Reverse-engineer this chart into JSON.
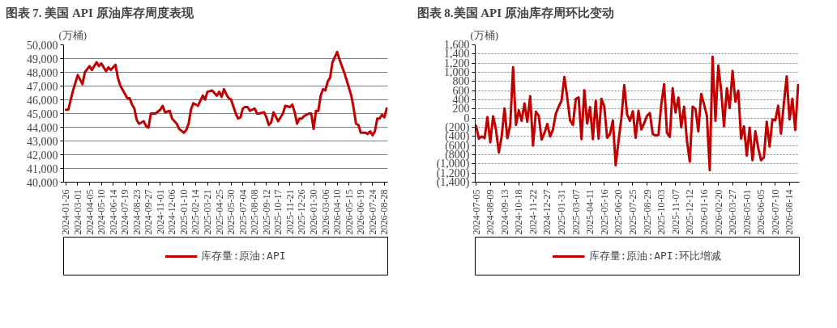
{
  "chart_data": [
    {
      "type": "line",
      "title": "图表 7. 美国 API 原油库存周度表现",
      "ylabel": "(万桶)",
      "legend": "bottom",
      "grid": "y",
      "marker": "none",
      "line_style": "solid",
      "x": [
        "2024-01-26",
        "2024-02-02",
        "2024-02-16",
        "2024-03-01",
        "2024-03-15",
        "2024-03-22",
        "2024-04-05",
        "2024-04-12",
        "2024-04-26",
        "2024-05-03",
        "2024-05-10",
        "2024-05-24",
        "2024-05-31",
        "2024-06-07",
        "2024-06-21",
        "2024-06-28",
        "2024-07-05",
        "2024-07-26",
        "2024-08-02",
        "2024-08-09",
        "2024-08-16",
        "2024-08-23",
        "2024-08-30",
        "2024-09-13",
        "2024-09-20",
        "2024-09-27",
        "2024-10-04",
        "2024-10-18",
        "2024-11-01",
        "2024-11-08",
        "2024-11-15",
        "2024-11-29",
        "2024-12-06",
        "2024-12-20",
        "2024-12-27",
        "2025-01-10",
        "2025-01-17",
        "2025-01-24",
        "2025-01-31",
        "2025-02-07",
        "2025-02-21",
        "2025-03-07",
        "2025-03-14",
        "2025-03-21",
        "2025-04-04",
        "2025-04-18",
        "2025-04-25",
        "2025-05-02",
        "2025-05-09",
        "2025-05-16",
        "2025-05-23",
        "2025-05-30",
        "2025-06-13",
        "2025-06-20",
        "2025-06-27",
        "2025-07-04",
        "2025-07-11",
        "2025-07-18",
        "2025-07-25",
        "2025-08-08",
        "2025-08-15",
        "2025-08-22",
        "2025-09-05",
        "2025-09-12",
        "2025-09-19",
        "2025-09-26",
        "2025-10-03",
        "2025-10-17",
        "2025-10-31",
        "2025-11-07",
        "2025-11-21",
        "2025-11-28",
        "2025-12-05",
        "2025-12-12",
        "2025-12-19",
        "2025-12-26",
        "2026-01-02",
        "2026-01-16",
        "2026-01-23",
        "2026-01-30",
        "2026-02-06",
        "2026-02-13",
        "2026-02-20",
        "2026-02-27",
        "2026-03-06",
        "2026-03-13",
        "2026-03-20",
        "2026-03-27",
        "2026-04-10",
        "2026-04-17",
        "2026-04-24",
        "2026-05-01",
        "2026-05-15",
        "2026-05-22",
        "2026-05-29",
        "2026-06-05",
        "2026-06-12",
        "2026-06-19",
        "2026-07-03",
        "2026-07-10",
        "2026-07-17",
        "2026-07-24",
        "2026-07-31",
        "2026-08-07",
        "2026-08-14",
        "2026-08-21",
        "2026-08-28",
        "2026-09-04"
      ],
      "series": [
        {
          "name": "库存量:原油:API",
          "color": "#c00000",
          "values": [
            45280,
            45280,
            46680,
            47800,
            47140,
            48000,
            48450,
            48170,
            48730,
            48450,
            48640,
            48080,
            48360,
            48170,
            48550,
            47610,
            47050,
            46120,
            46120,
            45650,
            45370,
            44530,
            44250,
            44440,
            44070,
            43980,
            45000,
            45000,
            45280,
            45560,
            45090,
            45190,
            44630,
            44250,
            43880,
            43600,
            43790,
            44250,
            45280,
            45750,
            45560,
            46300,
            46020,
            46580,
            46680,
            46300,
            46580,
            46210,
            46770,
            46400,
            46120,
            46020,
            45000,
            44630,
            44720,
            45370,
            45470,
            45470,
            45190,
            45370,
            45000,
            45000,
            45090,
            44720,
            44160,
            44350,
            45090,
            44440,
            45000,
            45560,
            45470,
            45650,
            45090,
            44250,
            44630,
            44630,
            44820,
            45000,
            45000,
            43880,
            45190,
            45190,
            46300,
            46770,
            46680,
            47330,
            47610,
            48730,
            49480,
            48920,
            48450,
            47990,
            46870,
            46300,
            45370,
            44250,
            44160,
            43600,
            43600,
            43510,
            43700,
            43410,
            43700,
            44630,
            44630,
            44910,
            44720,
            45370
          ]
        }
      ],
      "xlim": [
        "2024-01-19",
        "2026-09-07"
      ],
      "xticks": [
        "2024-01-26",
        "2024-03-01",
        "2024-04-05",
        "2024-05-10",
        "2024-06-14",
        "2024-07-19",
        "2024-08-23",
        "2024-09-27",
        "2024-11-01",
        "2024-12-06",
        "2025-01-10",
        "2025-02-14",
        "2025-03-21",
        "2025-04-25",
        "2025-05-30",
        "2025-07-04",
        "2025-08-08",
        "2025-09-12",
        "2025-10-17",
        "2025-11-21",
        "2025-12-26",
        "2026-01-30",
        "2026-03-06",
        "2026-04-10",
        "2026-05-15",
        "2026-06-19",
        "2026-07-24",
        "2026-08-28"
      ],
      "ylim": [
        40000,
        50000
      ],
      "yticks": [
        {
          "value": 40000,
          "label": "40,000"
        },
        {
          "value": 41000,
          "label": "41,000"
        },
        {
          "value": 42000,
          "label": "42,000"
        },
        {
          "value": 43000,
          "label": "43,000"
        },
        {
          "value": 44000,
          "label": "44,000"
        },
        {
          "value": 45000,
          "label": "45,000"
        },
        {
          "value": 46000,
          "label": "46,000"
        },
        {
          "value": 47000,
          "label": "47,000"
        },
        {
          "value": 48000,
          "label": "48,000"
        },
        {
          "value": 49000,
          "label": "49,000"
        },
        {
          "value": 50000,
          "label": "50,000"
        }
      ]
    },
    {
      "type": "line",
      "title": "图表 8.美国 API 原油库存周环比变动",
      "ylabel": "(万桶)",
      "legend": "bottom",
      "grid": "y",
      "marker": "none",
      "line_style": "solid",
      "x": [
        "2024-07-05",
        "2024-07-12",
        "2024-07-19",
        "2024-07-26",
        "2024-08-02",
        "2024-08-09",
        "2024-08-16",
        "2024-08-23",
        "2024-08-30",
        "2024-09-06",
        "2024-09-13",
        "2024-09-20",
        "2024-09-27",
        "2024-10-04",
        "2024-10-11",
        "2024-10-18",
        "2024-10-25",
        "2024-11-01",
        "2024-11-08",
        "2024-11-15",
        "2024-11-22",
        "2024-11-29",
        "2024-12-06",
        "2024-12-13",
        "2024-12-20",
        "2024-12-27",
        "2025-01-03",
        "2025-01-10",
        "2025-01-17",
        "2025-01-24",
        "2025-01-31",
        "2025-02-07",
        "2025-02-14",
        "2025-02-21",
        "2025-02-28",
        "2025-03-07",
        "2025-03-14",
        "2025-03-21",
        "2025-03-28",
        "2025-04-04",
        "2025-04-11",
        "2025-04-18",
        "2025-04-25",
        "2025-05-02",
        "2025-05-09",
        "2025-05-16",
        "2025-05-23",
        "2025-05-30",
        "2025-06-06",
        "2025-06-13",
        "2025-06-20",
        "2025-06-27",
        "2025-07-04",
        "2025-07-11",
        "2025-07-18",
        "2025-07-25",
        "2025-08-01",
        "2025-08-08",
        "2025-08-15",
        "2025-08-22",
        "2025-08-29",
        "2025-09-05",
        "2025-09-12",
        "2025-09-19",
        "2025-09-26",
        "2025-10-03",
        "2025-10-10",
        "2025-10-17",
        "2025-10-24",
        "2025-10-31",
        "2025-11-07",
        "2025-11-14",
        "2025-11-21",
        "2025-11-28",
        "2025-12-05",
        "2025-12-12",
        "2025-12-19",
        "2025-12-26",
        "2026-01-02",
        "2026-01-09",
        "2026-01-16",
        "2026-01-23",
        "2026-01-30",
        "2026-02-06",
        "2026-02-13",
        "2026-02-20",
        "2026-02-27",
        "2026-03-06",
        "2026-03-13",
        "2026-03-20",
        "2026-03-27",
        "2026-04-03",
        "2026-04-10",
        "2026-04-17",
        "2026-04-24",
        "2026-05-01",
        "2026-05-08",
        "2026-05-15",
        "2026-05-22",
        "2026-05-29",
        "2026-06-05",
        "2026-06-12",
        "2026-06-19",
        "2026-06-26",
        "2026-07-03",
        "2026-07-10",
        "2026-07-17",
        "2026-07-24",
        "2026-07-31",
        "2026-08-07",
        "2026-08-14",
        "2026-08-21",
        "2026-08-28",
        "2026-09-04"
      ],
      "series": [
        {
          "name": "库存量:原油:API:环比增减",
          "color": "#c00000",
          "values": [
            -170,
            -450,
            -400,
            -440,
            20,
            -530,
            40,
            -250,
            -750,
            -400,
            210,
            -440,
            -150,
            1110,
            -150,
            170,
            -60,
            320,
            -80,
            480,
            -600,
            140,
            50,
            -470,
            -330,
            -130,
            -400,
            -250,
            100,
            250,
            380,
            900,
            450,
            -50,
            -150,
            420,
            450,
            -460,
            610,
            -120,
            240,
            -460,
            380,
            -450,
            420,
            250,
            -430,
            -350,
            -50,
            -1030,
            -500,
            0,
            720,
            80,
            -60,
            150,
            -430,
            160,
            -250,
            -110,
            50,
            110,
            -350,
            -380,
            -370,
            300,
            740,
            -320,
            -410,
            650,
            120,
            450,
            -200,
            250,
            -500,
            -950,
            250,
            200,
            -290,
            530,
            300,
            50,
            -1140,
            1340,
            -60,
            1150,
            600,
            -180,
            650,
            220,
            1030,
            360,
            600,
            -450,
            -180,
            -820,
            -210,
            -920,
            -290,
            -650,
            -920,
            -860,
            -80,
            -620,
            -30,
            -50,
            270,
            -340,
            320,
            910,
            -30,
            420,
            -260,
            720
          ]
        }
      ],
      "xlim": [
        "2024-07-03",
        "2026-09-07"
      ],
      "xticks": [
        "2024-07-05",
        "2024-08-09",
        "2024-09-13",
        "2024-10-18",
        "2024-11-22",
        "2024-12-27",
        "2025-01-31",
        "2025-03-07",
        "2025-04-11",
        "2025-05-16",
        "2025-06-20",
        "2025-07-25",
        "2025-08-29",
        "2025-10-03",
        "2025-11-07",
        "2025-12-12",
        "2026-01-16",
        "2026-02-20",
        "2026-03-27",
        "2026-05-01",
        "2026-06-05",
        "2026-07-10",
        "2026-08-14"
      ],
      "ylim": [
        -1400,
        1600
      ],
      "yticks": [
        {
          "value": -1400,
          "label": "(1,400)"
        },
        {
          "value": -1200,
          "label": "(1,200)"
        },
        {
          "value": -1000,
          "label": "(1,000)"
        },
        {
          "value": -800,
          "label": "(800)"
        },
        {
          "value": -600,
          "label": "(600)"
        },
        {
          "value": -400,
          "label": "(400)"
        },
        {
          "value": -200,
          "label": "(200)"
        },
        0,
        200,
        400,
        600,
        800,
        {
          "value": 1000,
          "label": "1,000"
        },
        {
          "value": 1200,
          "label": "1,200"
        },
        {
          "value": 1400,
          "label": "1,400"
        },
        {
          "value": 1600,
          "label": "1,600"
        }
      ]
    }
  ]
}
